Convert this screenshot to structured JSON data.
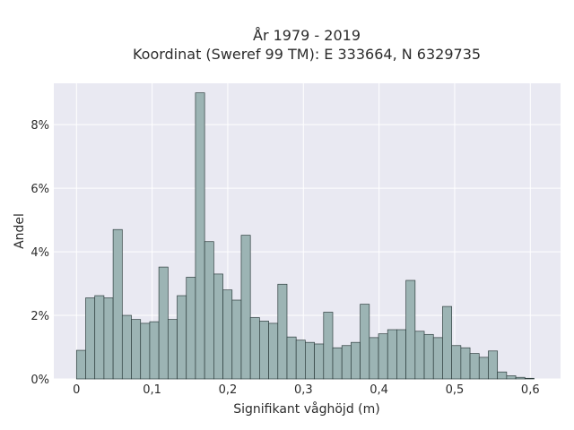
{
  "chart_data": {
    "type": "bar",
    "title": "År 1979 - 2019",
    "subtitle": "Koordinat (Sweref 99 TM): E 333664, N 6329735",
    "xlabel": "Signifikant våghöjd (m)",
    "ylabel": "Andel",
    "xlim": [
      -0.03,
      0.64
    ],
    "ylim": [
      0,
      9.3
    ],
    "x_ticks": [
      {
        "value": 0,
        "label": "0"
      },
      {
        "value": 0.1,
        "label": "0,1"
      },
      {
        "value": 0.2,
        "label": "0,2"
      },
      {
        "value": 0.3,
        "label": "0,3"
      },
      {
        "value": 0.4,
        "label": "0,4"
      },
      {
        "value": 0.5,
        "label": "0,5"
      },
      {
        "value": 0.6,
        "label": "0,6"
      }
    ],
    "y_ticks": [
      {
        "value": 0,
        "label": "0%"
      },
      {
        "value": 2,
        "label": "2%"
      },
      {
        "value": 4,
        "label": "4%"
      },
      {
        "value": 6,
        "label": "6%"
      },
      {
        "value": 8,
        "label": "8%"
      }
    ],
    "bin_start": 0,
    "bin_width": 0.0121,
    "values": [
      0.9,
      2.55,
      2.62,
      2.55,
      4.7,
      2.0,
      1.87,
      1.75,
      1.8,
      3.52,
      1.87,
      2.62,
      3.2,
      9.0,
      4.32,
      3.3,
      2.8,
      2.48,
      4.52,
      1.93,
      1.82,
      1.75,
      2.98,
      1.32,
      1.22,
      1.15,
      1.1,
      2.1,
      0.98,
      1.05,
      1.15,
      2.35,
      1.3,
      1.42,
      1.55,
      1.55,
      3.1,
      1.5,
      1.4,
      1.3,
      2.28,
      1.05,
      0.98,
      0.8,
      0.68,
      0.88,
      0.22,
      0.1,
      0.05,
      0.02
    ],
    "grid": true,
    "colors": {
      "bar_fill": "#9cb4b4",
      "bar_stroke": "#2f3f3f",
      "plot_background": "#e9e9f2",
      "grid": "#ffffff"
    }
  }
}
